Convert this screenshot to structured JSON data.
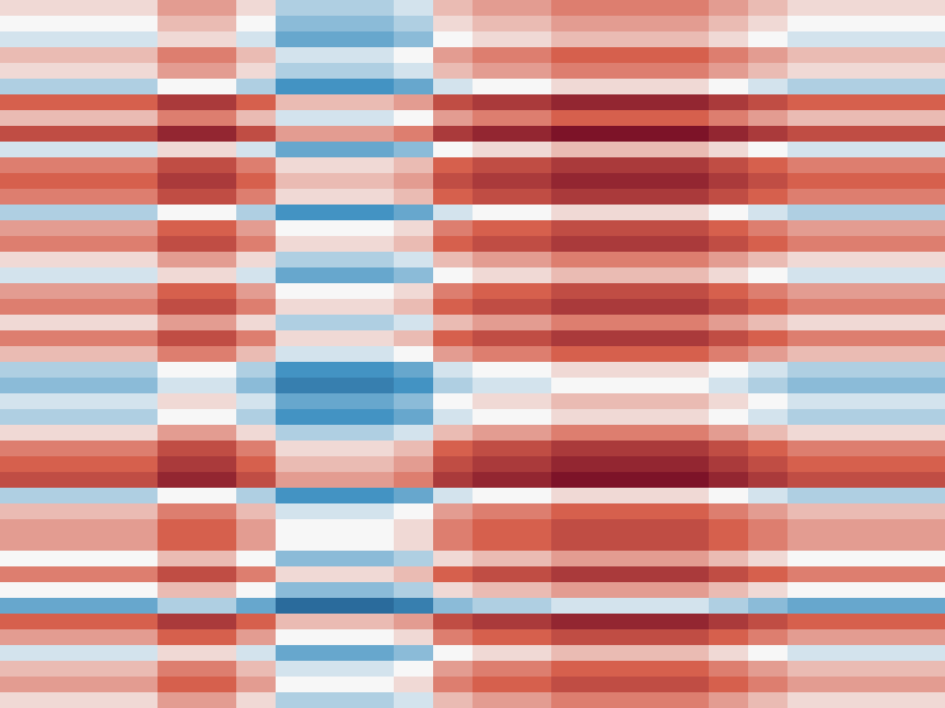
{
  "chart_data": {
    "type": "heatmap",
    "zlim": [
      -10,
      10
    ],
    "colors": [
      "#053061",
      "#4393c3",
      "#f7f7f7",
      "#d6604d",
      "#67001f"
    ],
    "values": [
      [
        1,
        1,
        1,
        1,
        3,
        3,
        1,
        -2,
        -2,
        -2,
        -1,
        2,
        3,
        3,
        4,
        4,
        4,
        4,
        3,
        2,
        1,
        1,
        1,
        1
      ],
      [
        0,
        0,
        0,
        0,
        2,
        2,
        0,
        -3,
        -3,
        -3,
        -2,
        1,
        2,
        2,
        3,
        3,
        3,
        3,
        2,
        1,
        0,
        0,
        0,
        0
      ],
      [
        -1,
        -1,
        -1,
        -1,
        1,
        1,
        -1,
        -4,
        -4,
        -4,
        -3,
        0,
        1,
        1,
        2,
        2,
        2,
        2,
        1,
        0,
        -1,
        -1,
        -1,
        -1
      ],
      [
        2,
        2,
        2,
        2,
        4,
        4,
        2,
        -1,
        -1,
        -1,
        0,
        3,
        4,
        4,
        5,
        5,
        5,
        5,
        4,
        3,
        2,
        2,
        2,
        2
      ],
      [
        1,
        1,
        1,
        1,
        3,
        3,
        1,
        -2,
        -2,
        -2,
        -1,
        2,
        3,
        3,
        4,
        4,
        4,
        4,
        3,
        2,
        1,
        1,
        1,
        1
      ],
      [
        -2,
        -2,
        -2,
        -2,
        0,
        0,
        -2,
        -5,
        -5,
        -5,
        -4,
        -1,
        0,
        0,
        1,
        1,
        1,
        1,
        0,
        -1,
        -2,
        -2,
        -2,
        -2
      ],
      [
        5,
        5,
        5,
        5,
        7,
        7,
        5,
        2,
        2,
        2,
        3,
        6,
        7,
        7,
        8,
        8,
        8,
        8,
        7,
        6,
        5,
        5,
        5,
        5
      ],
      [
        2,
        2,
        2,
        2,
        4,
        4,
        2,
        -1,
        -1,
        -1,
        0,
        3,
        4,
        4,
        5,
        5,
        5,
        5,
        4,
        3,
        2,
        2,
        2,
        2
      ],
      [
        6,
        6,
        6,
        6,
        8,
        8,
        6,
        3,
        3,
        3,
        4,
        7,
        8,
        8,
        9,
        9,
        9,
        9,
        8,
        7,
        6,
        6,
        6,
        6
      ],
      [
        -1,
        -1,
        -1,
        -1,
        1,
        1,
        -1,
        -4,
        -4,
        -4,
        -3,
        0,
        1,
        1,
        2,
        2,
        2,
        2,
        1,
        0,
        -1,
        -1,
        -1,
        -1
      ],
      [
        4,
        4,
        4,
        4,
        6,
        6,
        4,
        1,
        1,
        1,
        2,
        5,
        6,
        6,
        7,
        7,
        7,
        7,
        6,
        5,
        4,
        4,
        4,
        4
      ],
      [
        5,
        5,
        5,
        5,
        7,
        7,
        5,
        2,
        2,
        2,
        3,
        6,
        7,
        7,
        8,
        8,
        8,
        8,
        7,
        6,
        5,
        5,
        5,
        5
      ],
      [
        4,
        4,
        4,
        4,
        6,
        6,
        4,
        1,
        1,
        1,
        2,
        5,
        6,
        6,
        7,
        7,
        7,
        7,
        6,
        5,
        4,
        4,
        4,
        4
      ],
      [
        -2,
        -2,
        -2,
        -2,
        0,
        0,
        -2,
        -5,
        -5,
        -5,
        -4,
        -1,
        0,
        0,
        1,
        1,
        1,
        1,
        0,
        -1,
        -2,
        -2,
        -2,
        -2
      ],
      [
        3,
        3,
        3,
        3,
        5,
        5,
        3,
        0,
        0,
        0,
        1,
        4,
        5,
        5,
        6,
        6,
        6,
        6,
        5,
        4,
        3,
        3,
        3,
        3
      ],
      [
        4,
        4,
        4,
        4,
        6,
        6,
        4,
        1,
        1,
        1,
        2,
        5,
        6,
        6,
        7,
        7,
        7,
        7,
        6,
        5,
        4,
        4,
        4,
        4
      ],
      [
        1,
        1,
        1,
        1,
        3,
        3,
        1,
        -2,
        -2,
        -2,
        -1,
        2,
        3,
        3,
        4,
        4,
        4,
        4,
        3,
        2,
        1,
        1,
        1,
        1
      ],
      [
        -1,
        -1,
        -1,
        -1,
        1,
        1,
        -1,
        -4,
        -4,
        -4,
        -3,
        0,
        1,
        1,
        2,
        2,
        2,
        2,
        1,
        0,
        -1,
        -1,
        -1,
        -1
      ],
      [
        3,
        3,
        3,
        3,
        5,
        5,
        3,
        0,
        0,
        0,
        1,
        4,
        5,
        5,
        6,
        6,
        6,
        6,
        5,
        4,
        3,
        3,
        3,
        3
      ],
      [
        4,
        4,
        4,
        4,
        6,
        6,
        4,
        1,
        1,
        1,
        2,
        5,
        6,
        6,
        7,
        7,
        7,
        7,
        6,
        5,
        4,
        4,
        4,
        4
      ],
      [
        1,
        1,
        1,
        1,
        3,
        3,
        1,
        -2,
        -2,
        -2,
        -1,
        2,
        3,
        3,
        4,
        4,
        4,
        4,
        3,
        2,
        1,
        1,
        1,
        1
      ],
      [
        4,
        4,
        4,
        4,
        6,
        6,
        4,
        1,
        1,
        1,
        2,
        5,
        6,
        6,
        7,
        7,
        7,
        7,
        6,
        5,
        4,
        4,
        4,
        4
      ],
      [
        2,
        2,
        2,
        2,
        4,
        4,
        2,
        -1,
        -1,
        -1,
        0,
        3,
        4,
        4,
        5,
        5,
        5,
        5,
        4,
        3,
        2,
        2,
        2,
        2
      ],
      [
        -2,
        -2,
        -2,
        -2,
        0,
        0,
        -2,
        -5,
        -5,
        -5,
        -4,
        -1,
        0,
        0,
        1,
        1,
        1,
        1,
        0,
        -1,
        -2,
        -2,
        -2,
        -2
      ],
      [
        -3,
        -3,
        -3,
        -3,
        -1,
        -1,
        -3,
        -6,
        -6,
        -6,
        -5,
        -2,
        -1,
        -1,
        0,
        0,
        0,
        0,
        -1,
        -2,
        -3,
        -3,
        -3,
        -3
      ],
      [
        -1,
        -1,
        -1,
        -1,
        1,
        1,
        -1,
        -4,
        -4,
        -4,
        -3,
        0,
        1,
        1,
        2,
        2,
        2,
        2,
        1,
        0,
        -1,
        -1,
        -1,
        -1
      ],
      [
        -2,
        -2,
        -2,
        -2,
        0,
        0,
        -2,
        -5,
        -5,
        -5,
        -4,
        -1,
        0,
        0,
        1,
        1,
        1,
        1,
        0,
        -1,
        -2,
        -2,
        -2,
        -2
      ],
      [
        1,
        1,
        1,
        1,
        3,
        3,
        1,
        -2,
        -2,
        -2,
        -1,
        2,
        3,
        3,
        4,
        4,
        4,
        4,
        3,
        2,
        1,
        1,
        1,
        1
      ],
      [
        4,
        4,
        4,
        4,
        6,
        6,
        4,
        1,
        1,
        1,
        2,
        5,
        6,
        6,
        7,
        7,
        7,
        7,
        6,
        5,
        4,
        4,
        4,
        4
      ],
      [
        5,
        5,
        5,
        5,
        7,
        7,
        5,
        2,
        2,
        2,
        3,
        6,
        7,
        7,
        8,
        8,
        8,
        8,
        7,
        6,
        5,
        5,
        5,
        5
      ],
      [
        6,
        6,
        6,
        6,
        8,
        8,
        6,
        3,
        3,
        3,
        4,
        7,
        8,
        8,
        9,
        9,
        9,
        9,
        8,
        7,
        6,
        6,
        6,
        6
      ],
      [
        -2,
        -2,
        -2,
        -2,
        0,
        0,
        -2,
        -5,
        -5,
        -5,
        -4,
        -1,
        0,
        0,
        1,
        1,
        1,
        1,
        0,
        -1,
        -2,
        -2,
        -2,
        -2
      ],
      [
        2,
        2,
        2,
        2,
        4,
        4,
        2,
        -1,
        -1,
        -1,
        0,
        3,
        4,
        4,
        5,
        5,
        5,
        5,
        4,
        3,
        2,
        2,
        2,
        2
      ],
      [
        3,
        3,
        3,
        3,
        5,
        5,
        3,
        0,
        0,
        0,
        1,
        4,
        5,
        5,
        6,
        6,
        6,
        6,
        5,
        4,
        3,
        3,
        3,
        3
      ],
      [
        3,
        3,
        3,
        3,
        5,
        5,
        3,
        0,
        0,
        0,
        1,
        4,
        5,
        5,
        6,
        6,
        6,
        6,
        5,
        4,
        3,
        3,
        3,
        3
      ],
      [
        0,
        0,
        0,
        0,
        2,
        2,
        0,
        -3,
        -3,
        -3,
        -2,
        1,
        2,
        2,
        3,
        3,
        3,
        3,
        2,
        1,
        0,
        0,
        0,
        0
      ],
      [
        4,
        4,
        4,
        4,
        6,
        6,
        4,
        1,
        1,
        1,
        2,
        5,
        6,
        6,
        7,
        7,
        7,
        7,
        6,
        5,
        4,
        4,
        4,
        4
      ],
      [
        0,
        0,
        0,
        0,
        2,
        2,
        0,
        -3,
        -3,
        -3,
        -2,
        1,
        2,
        2,
        3,
        3,
        3,
        3,
        2,
        1,
        0,
        0,
        0,
        0
      ],
      [
        -4,
        -4,
        -4,
        -4,
        -2,
        -2,
        -4,
        -7,
        -7,
        -7,
        -6,
        -3,
        -2,
        -2,
        -1,
        -1,
        -1,
        -1,
        -2,
        -3,
        -4,
        -4,
        -4,
        -4
      ],
      [
        5,
        5,
        5,
        5,
        7,
        7,
        5,
        2,
        2,
        2,
        3,
        6,
        7,
        7,
        8,
        8,
        8,
        8,
        7,
        6,
        5,
        5,
        5,
        5
      ],
      [
        3,
        3,
        3,
        3,
        5,
        5,
        3,
        0,
        0,
        0,
        1,
        4,
        5,
        5,
        6,
        6,
        6,
        6,
        5,
        4,
        3,
        3,
        3,
        3
      ],
      [
        -1,
        -1,
        -1,
        -1,
        1,
        1,
        -1,
        -4,
        -4,
        -4,
        -3,
        0,
        1,
        1,
        2,
        2,
        2,
        2,
        1,
        0,
        -1,
        -1,
        -1,
        -1
      ],
      [
        2,
        2,
        2,
        2,
        4,
        4,
        2,
        -1,
        -1,
        -1,
        0,
        3,
        4,
        4,
        5,
        5,
        5,
        5,
        4,
        3,
        2,
        2,
        2,
        2
      ],
      [
        3,
        3,
        3,
        3,
        5,
        5,
        3,
        0,
        0,
        0,
        1,
        4,
        5,
        5,
        6,
        6,
        6,
        6,
        5,
        4,
        3,
        3,
        3,
        3
      ],
      [
        1,
        1,
        1,
        1,
        3,
        3,
        1,
        -2,
        -2,
        -2,
        -1,
        2,
        3,
        3,
        4,
        4,
        4,
        4,
        3,
        2,
        1,
        1,
        1,
        1
      ]
    ]
  }
}
